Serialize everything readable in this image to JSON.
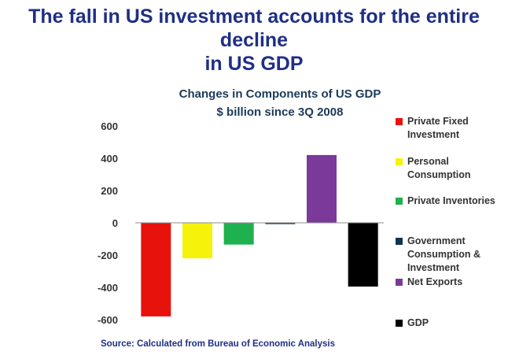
{
  "headline": {
    "line1": "The fall in US investment accounts for the entire decline",
    "line2": "in US GDP"
  },
  "chart_data": {
    "type": "bar",
    "title": "Changes in Components of US GDP",
    "subtitle": "$ billion since 3Q 2008",
    "categories": [
      "Private Fixed Investment",
      "Personal Consumption",
      "Private Inventories",
      "Government Consumption & Investment",
      "Net Exports",
      "GDP"
    ],
    "values": [
      -580,
      -220,
      -135,
      -8,
      420,
      -395
    ],
    "colors": [
      "#e8120c",
      "#f7f20a",
      "#1fb050",
      "#0f3552",
      "#7b3a9a",
      "#000000"
    ],
    "legend_labels": [
      [
        "Private Fixed",
        "Investment"
      ],
      [
        "Personal",
        "Consumption"
      ],
      [
        "Private Inventories"
      ],
      [
        "Government",
        "Consumption &",
        "Investment"
      ],
      [
        "Net Exports"
      ],
      [
        "GDP"
      ]
    ],
    "ylim": [
      -600,
      600
    ],
    "yticks": [
      600,
      400,
      200,
      0,
      -200,
      -400,
      -600
    ],
    "xlabel": "",
    "ylabel": "",
    "grid": false,
    "legend_position": "right"
  },
  "source": "Source: Calculated from Bureau of Economic Analysis"
}
